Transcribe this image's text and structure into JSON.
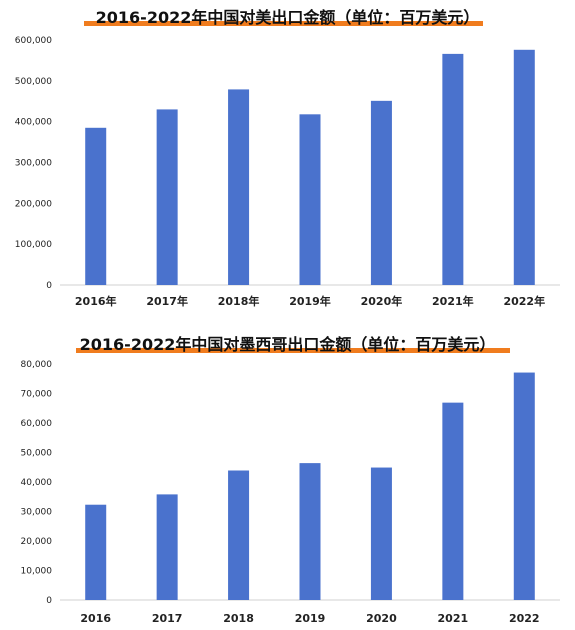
{
  "chart_data": [
    {
      "type": "bar",
      "title": "2016-2022年中国对美出口金额（单位：百万美元）",
      "categories": [
        "2016年",
        "2017年",
        "2018年",
        "2019年",
        "2020年",
        "2021年",
        "2022年"
      ],
      "values": [
        385000,
        430000,
        479000,
        418000,
        451000,
        566000,
        576000
      ],
      "yticks": [
        "0",
        "100,000",
        "200,000",
        "300,000",
        "400,000",
        "500,000",
        "600,000"
      ],
      "ylim": [
        0,
        600000
      ],
      "xlabel": "",
      "ylabel": "",
      "grid": false,
      "bar_color": "#4a72cd",
      "accent_color": "#f07c1e"
    },
    {
      "type": "bar",
      "title": "2016-2022年中国对墨西哥出口金额（单位：百万美元）",
      "categories": [
        "2016",
        "2017",
        "2018",
        "2019",
        "2020",
        "2021",
        "2022"
      ],
      "values": [
        32300,
        35800,
        43900,
        46400,
        44900,
        66900,
        77100
      ],
      "yticks": [
        "0",
        "10,000",
        "20,000",
        "30,000",
        "40,000",
        "50,000",
        "60,000",
        "70,000",
        "80,000"
      ],
      "ylim": [
        0,
        80000
      ],
      "xlabel": "",
      "ylabel": "",
      "grid": false,
      "bar_color": "#4a72cd",
      "accent_color": "#f07c1e"
    }
  ]
}
